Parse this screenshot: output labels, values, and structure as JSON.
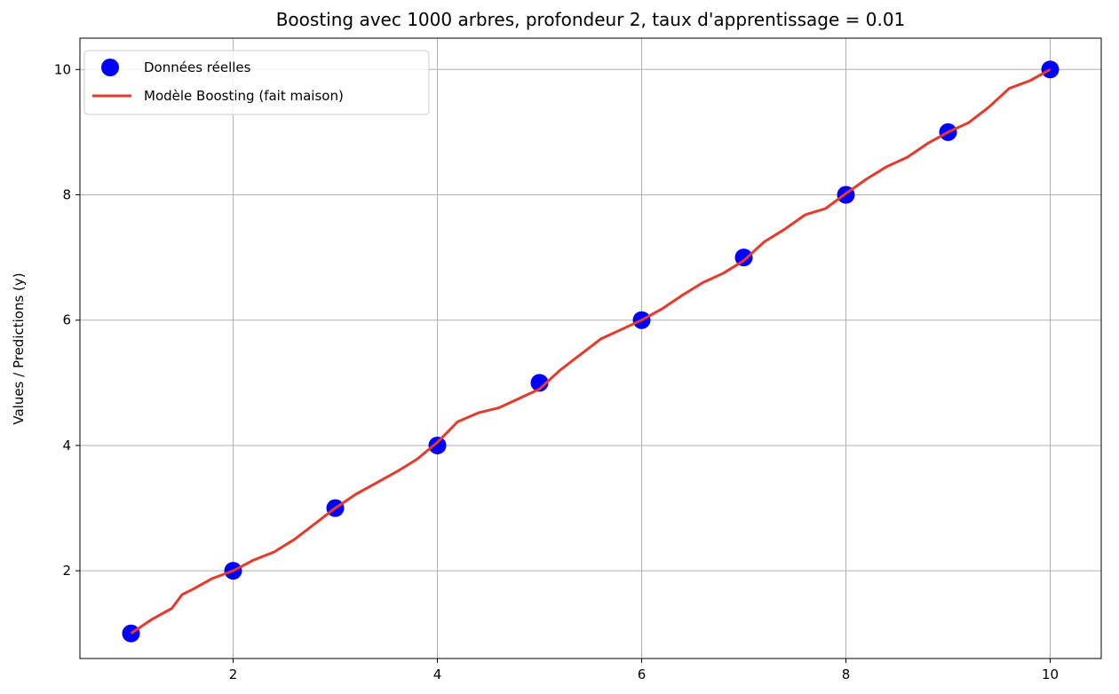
{
  "chart_data": {
    "type": "line",
    "title": "Boosting avec 1000 arbres, profondeur 2, taux d'apprentissage = 0.01",
    "xlabel": "",
    "ylabel": "Values / Predictions (y)",
    "xlim": [
      0.5,
      10.5
    ],
    "ylim": [
      0.6,
      10.5
    ],
    "xticks": [
      2,
      4,
      6,
      8,
      10
    ],
    "yticks": [
      2,
      4,
      6,
      8,
      10
    ],
    "grid": true,
    "legend_position": "top-left",
    "series": [
      {
        "name": "Données réelles",
        "kind": "scatter",
        "color": "#0000ff",
        "x": [
          1,
          2,
          3,
          4,
          5,
          6,
          7,
          8,
          9,
          10
        ],
        "y": [
          1,
          2,
          3,
          4,
          5,
          6,
          7,
          8,
          9,
          10
        ]
      },
      {
        "name": "Modèle Boosting (fait maison)",
        "kind": "line",
        "color": "#e8392a",
        "x": [
          1.0,
          1.2,
          1.4,
          1.5,
          1.6,
          1.8,
          2.0,
          2.2,
          2.4,
          2.6,
          2.8,
          3.0,
          3.2,
          3.4,
          3.6,
          3.8,
          4.0,
          4.2,
          4.4,
          4.6,
          4.8,
          5.0,
          5.2,
          5.4,
          5.6,
          5.8,
          6.0,
          6.2,
          6.4,
          6.6,
          6.8,
          7.0,
          7.2,
          7.4,
          7.6,
          7.8,
          8.0,
          8.2,
          8.4,
          8.6,
          8.8,
          9.0,
          9.2,
          9.4,
          9.6,
          9.8,
          10.0
        ],
        "y": [
          1.0,
          1.22,
          1.4,
          1.62,
          1.7,
          1.88,
          2.0,
          2.17,
          2.3,
          2.5,
          2.75,
          3.0,
          3.22,
          3.4,
          3.58,
          3.78,
          4.05,
          4.38,
          4.52,
          4.6,
          4.75,
          4.9,
          5.2,
          5.45,
          5.7,
          5.85,
          6.0,
          6.18,
          6.4,
          6.6,
          6.75,
          6.95,
          7.25,
          7.45,
          7.68,
          7.78,
          8.02,
          8.25,
          8.45,
          8.6,
          8.82,
          9.0,
          9.15,
          9.4,
          9.7,
          9.82,
          10.0
        ]
      }
    ]
  }
}
